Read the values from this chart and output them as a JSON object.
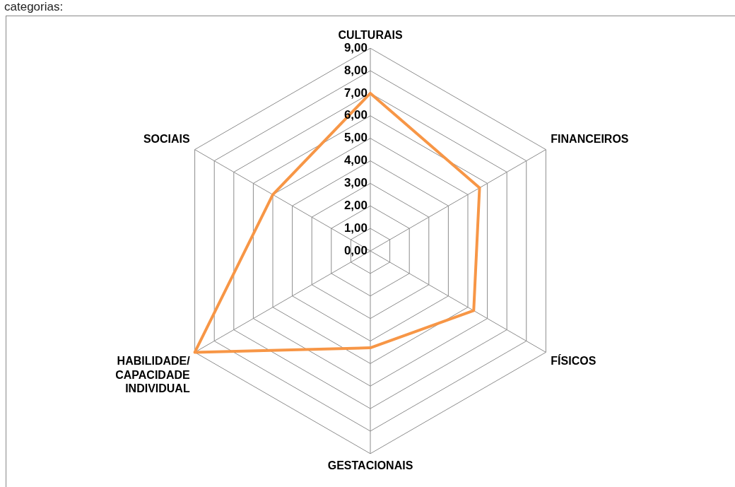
{
  "chart_data": {
    "type": "radar",
    "annotations": [
      "categorias:"
    ],
    "categories": [
      "CULTURAIS",
      "FINANCEIROS",
      "FÍSICOS",
      "GESTACIONAIS",
      "HABILIDADE/ CAPACIDADE INDIVIDUAL",
      "SOCIAIS"
    ],
    "series": [
      {
        "color": "#f79646",
        "values": [
          7.0,
          5.6,
          5.3,
          4.3,
          9.0,
          5.0
        ]
      }
    ],
    "ylim": [
      0,
      9
    ],
    "yticks": [
      {
        "value": 0,
        "label": "0,00"
      },
      {
        "value": 1,
        "label": "1,00"
      },
      {
        "value": 2,
        "label": "2,00"
      },
      {
        "value": 3,
        "label": "3,00"
      },
      {
        "value": 4,
        "label": "4,00"
      },
      {
        "value": 5,
        "label": "5,00"
      },
      {
        "value": 6,
        "label": "6,00"
      },
      {
        "value": 7,
        "label": "7,00"
      },
      {
        "value": 8,
        "label": "8,00"
      },
      {
        "value": 9,
        "label": "9,00"
      }
    ],
    "grid": true,
    "legend": false,
    "marker": "none",
    "line_style": "solid"
  }
}
